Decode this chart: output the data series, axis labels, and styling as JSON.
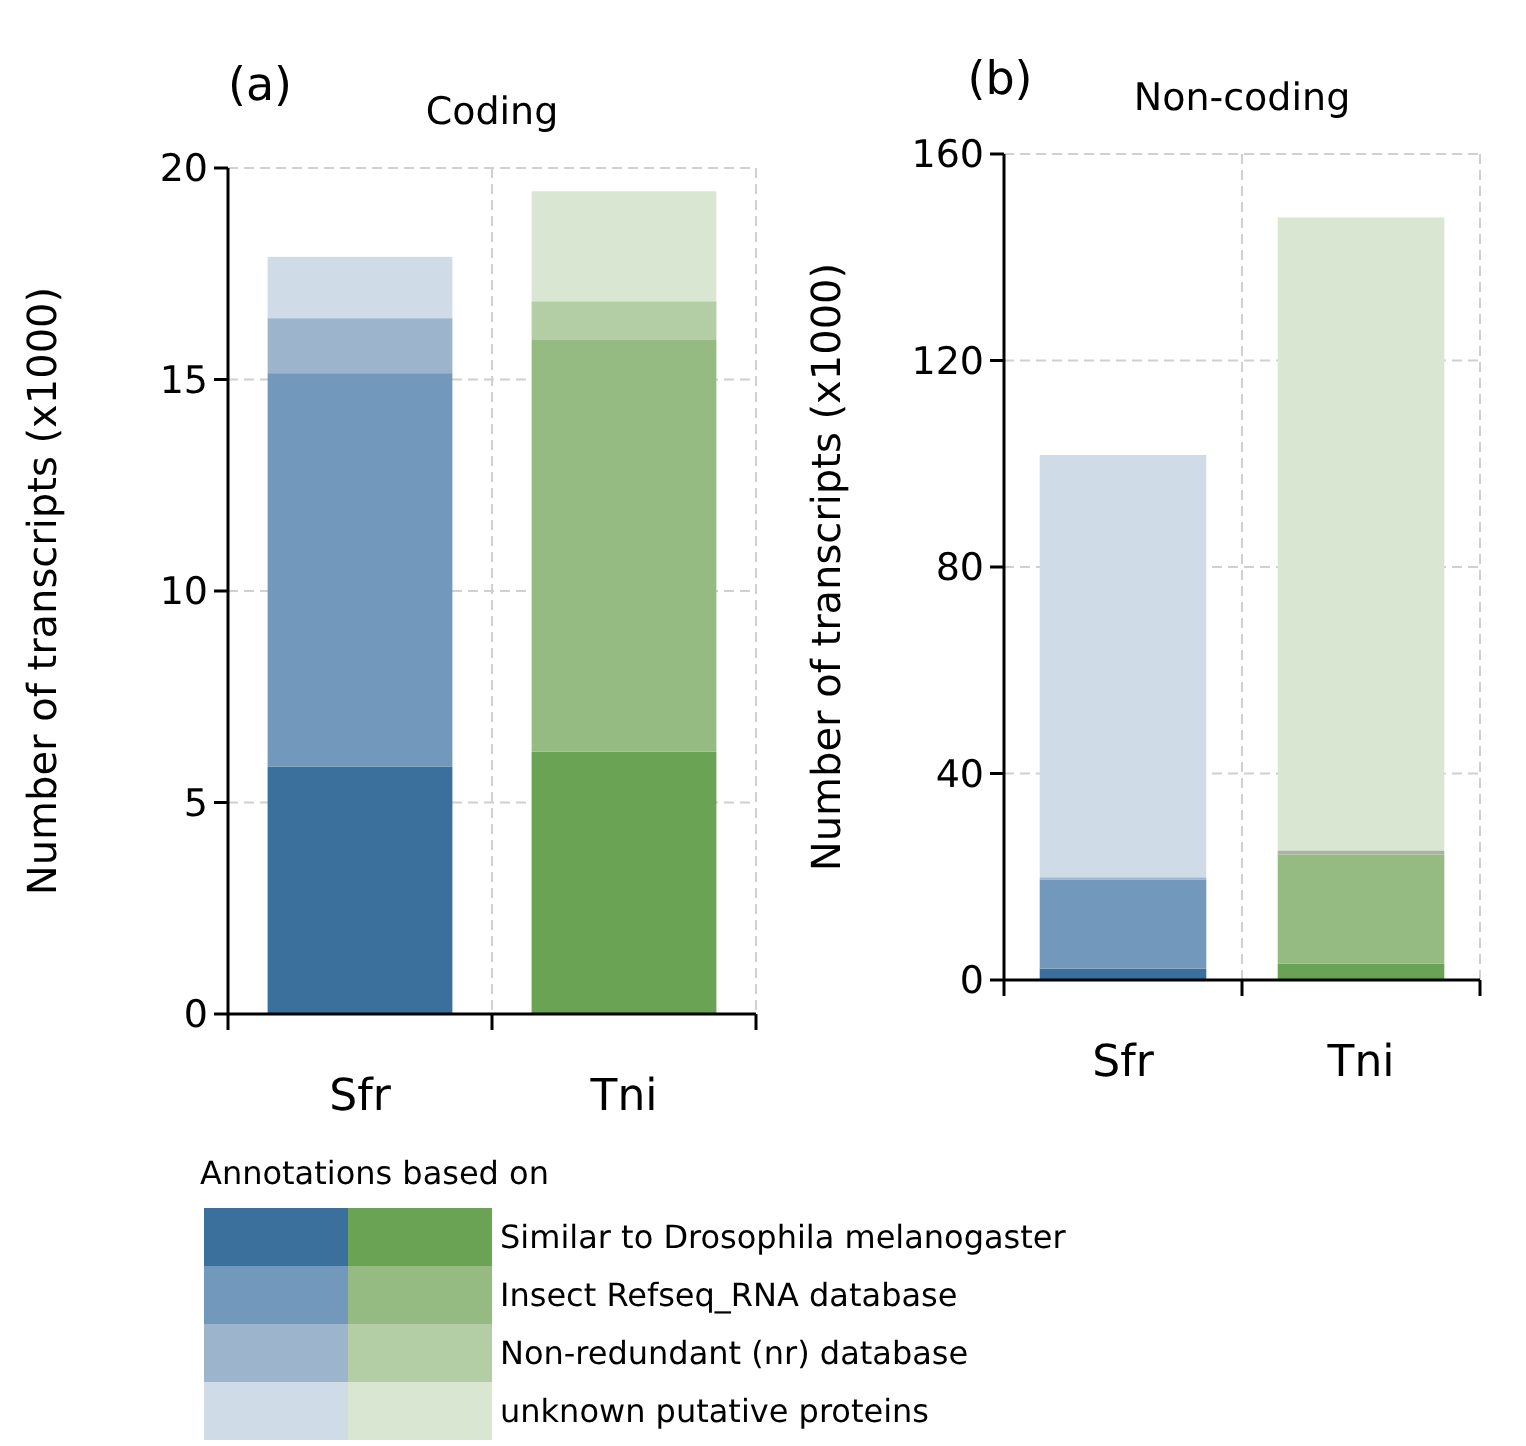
{
  "chart_data": [
    {
      "type": "bar",
      "title": "Coding",
      "ylabel": "Number of transcripts (x1000)",
      "annotations": [
        "(a)"
      ],
      "categories": [
        "Sfr",
        "Tni"
      ],
      "stacked": true,
      "ylim": [
        0,
        20
      ],
      "yticks": [
        0,
        5,
        10,
        15,
        20
      ],
      "grid": true,
      "legend": "bottom",
      "legend_title": "Annotations based on",
      "series": [
        {
          "name": "Similar to Drosophila melanogaster",
          "colors": [
            "#3b6f9c",
            "#6aa353"
          ],
          "values": [
            5.85,
            6.2
          ]
        },
        {
          "name": "Insect Refseq_RNA database",
          "colors": [
            "#7299bb",
            "#95bb83"
          ],
          "values": [
            9.3,
            9.75
          ]
        },
        {
          "name": "Non-redundant (nr) database",
          "colors": [
            "#9cb5cd",
            "#b3cea5"
          ],
          "values": [
            1.3,
            0.9
          ]
        },
        {
          "name": "unknown putative proteins",
          "colors": [
            "#cfdbe6",
            "#d9e6d2"
          ],
          "values": [
            1.45,
            2.6
          ]
        }
      ]
    },
    {
      "type": "bar",
      "title": "Non-coding",
      "ylabel": "Number of transcripts (x1000)",
      "annotations": [
        "(b)"
      ],
      "categories": [
        "Sfr",
        "Tni"
      ],
      "stacked": true,
      "ylim": [
        0,
        160
      ],
      "yticks": [
        0,
        40,
        80,
        120,
        160
      ],
      "grid": true,
      "series": [
        {
          "colors": [
            "#3b6f9c",
            "#6aa353"
          ],
          "values": [
            2.2,
            3.2
          ]
        },
        {
          "colors": [
            "#7299bb",
            "#95bb83"
          ],
          "values": [
            17.2,
            21.1
          ]
        },
        {
          "colors": [
            "#9cb5cd",
            "#a6b59e"
          ],
          "values": [
            0.5,
            0.8
          ]
        },
        {
          "colors": [
            "#cfdbe6",
            "#d9e6d2"
          ],
          "values": [
            81.8,
            122.6
          ]
        }
      ]
    }
  ]
}
